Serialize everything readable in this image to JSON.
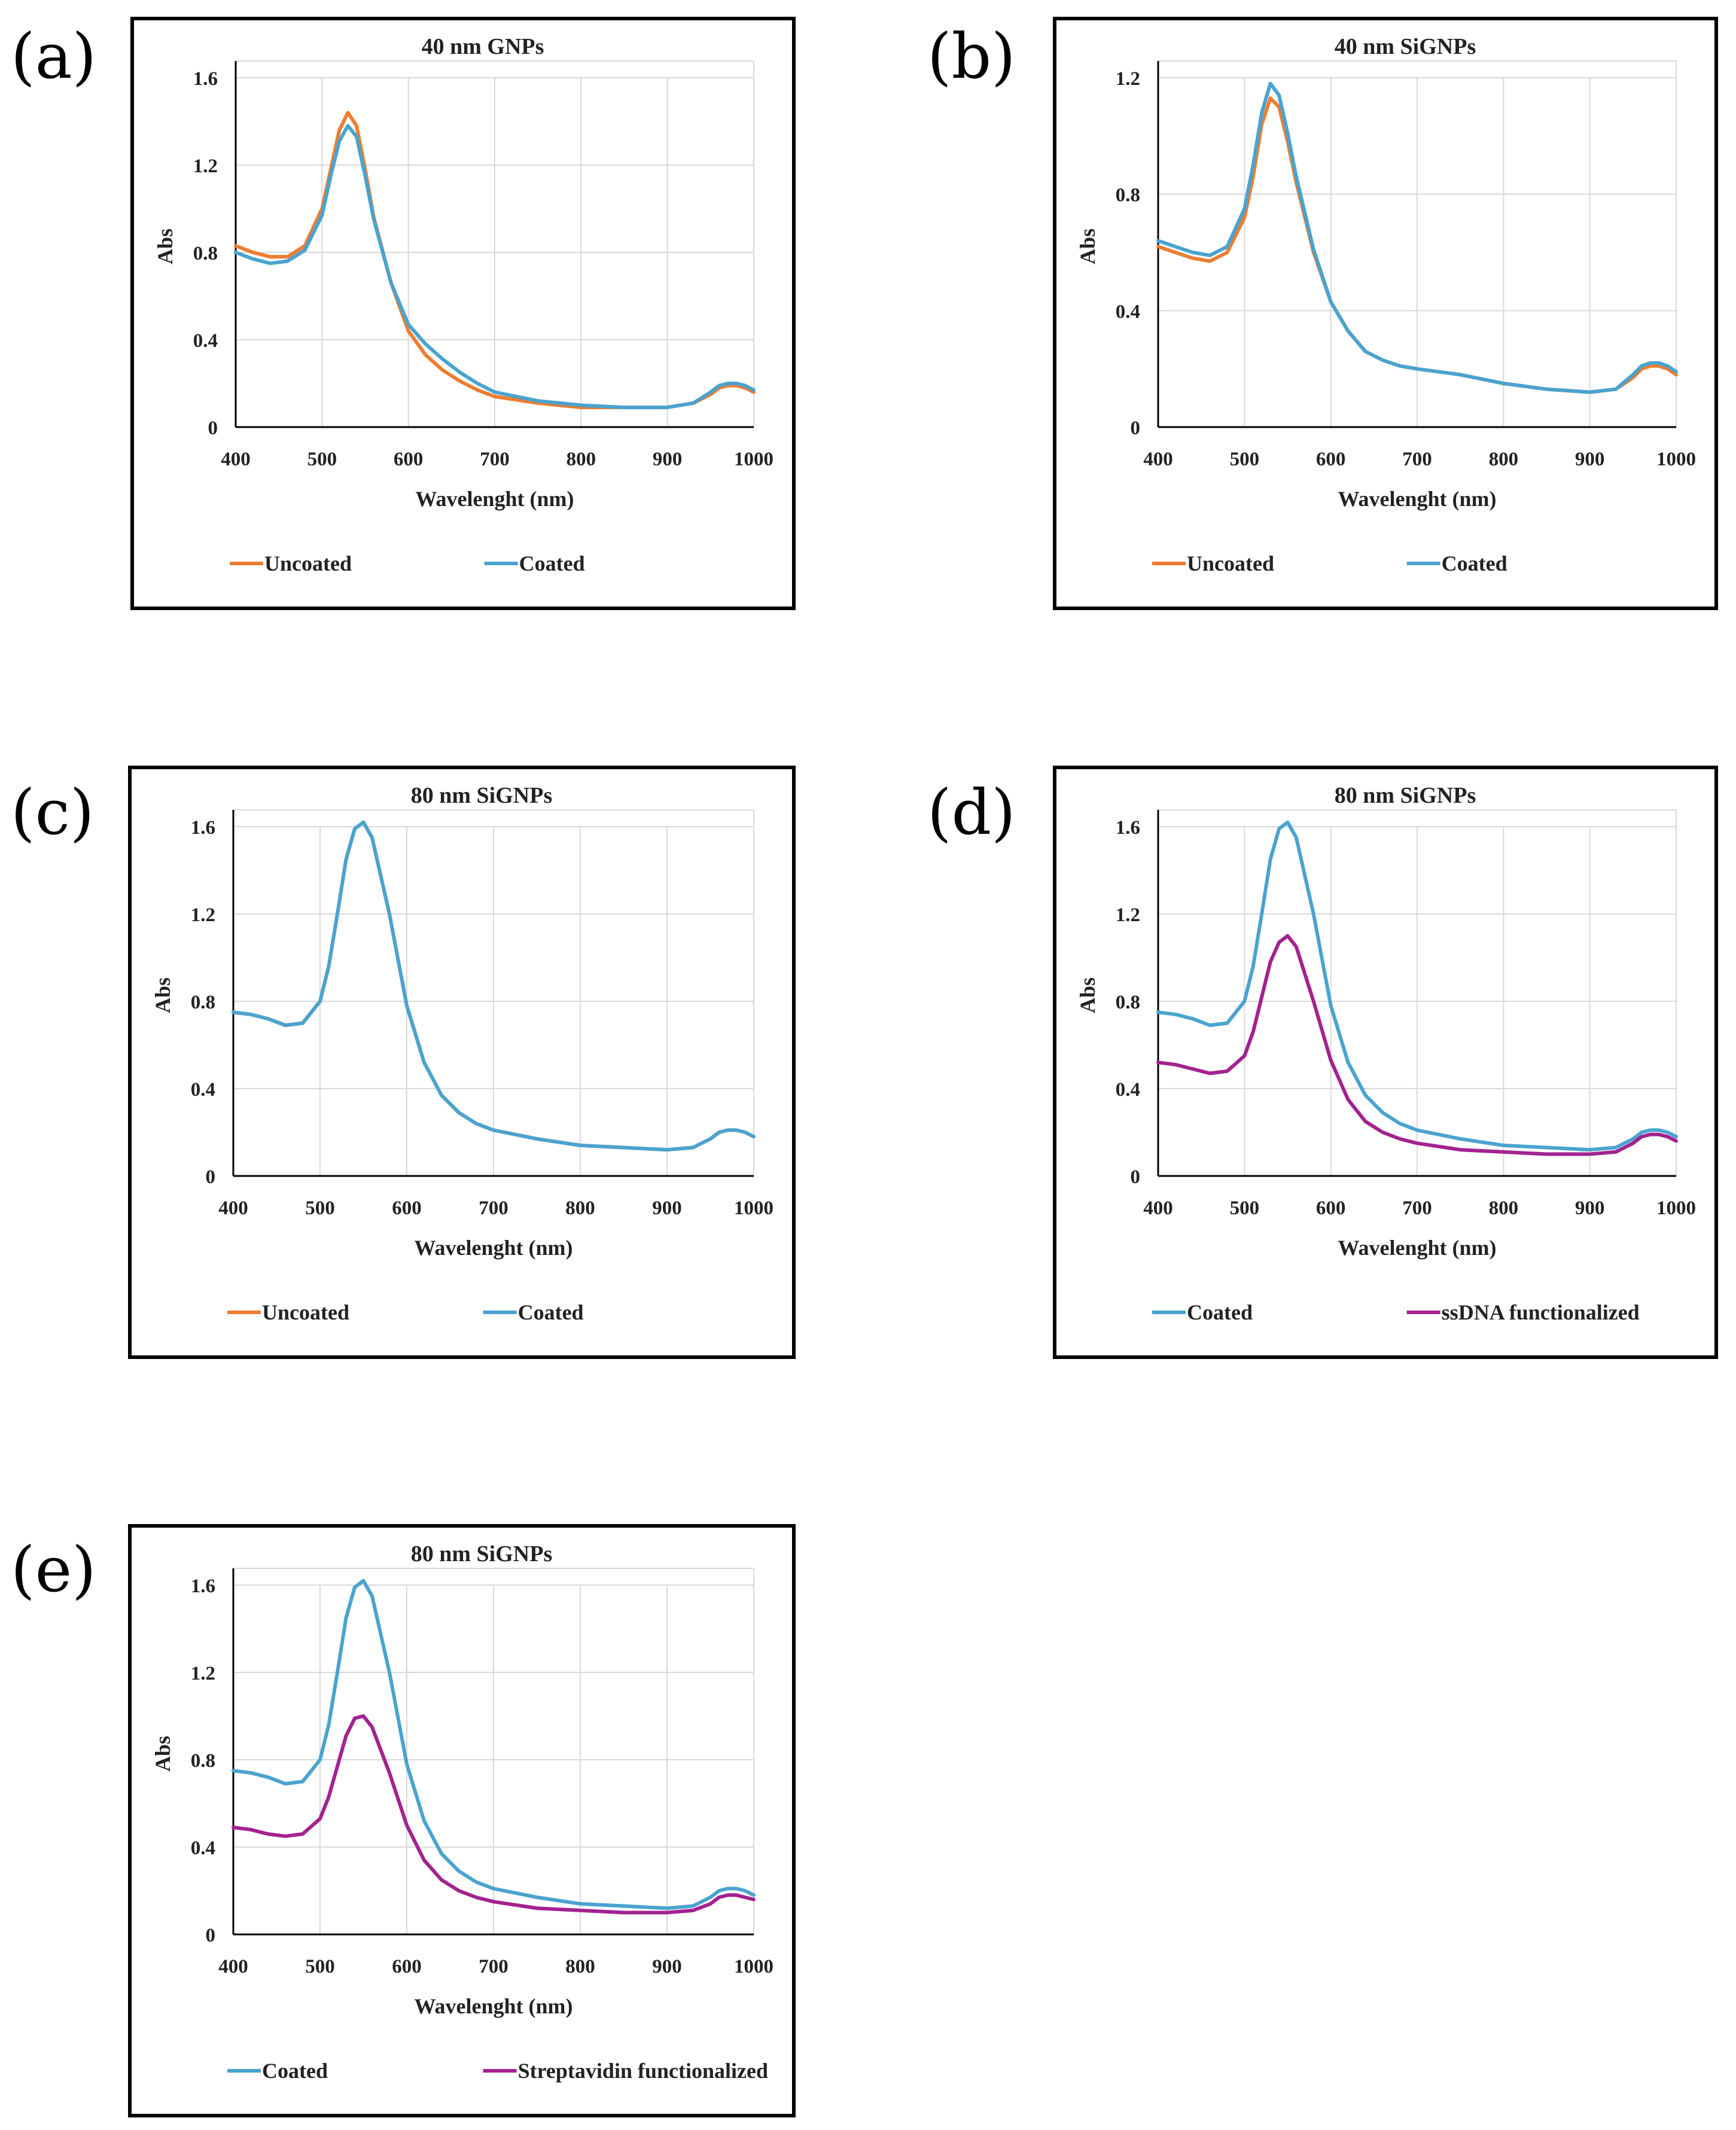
{
  "colors": {
    "uncoated": "#ED7D31",
    "coated": "#4AA3CF",
    "functionalized": "#A3228F",
    "grid": "#D9D9D9",
    "axis": "#000000"
  },
  "chart_data": [
    {
      "id": "a",
      "panel_label": "(a)",
      "type": "line",
      "title": "40 nm GNPs",
      "xlabel": "Wavelenght  (nm)",
      "ylabel": "Abs",
      "xlim": [
        400,
        1000
      ],
      "ylim": [
        0,
        1.6
      ],
      "xticks": [
        400,
        500,
        600,
        700,
        800,
        900,
        1000
      ],
      "yticks": [
        0,
        0.4,
        0.8,
        1.2,
        1.6
      ],
      "ytick_labels": [
        "0",
        "0.4",
        "0.8",
        "1.2",
        "1.6"
      ],
      "legend": "bottom",
      "series": [
        {
          "name": "Uncoated",
          "color_key": "uncoated",
          "x": [
            400,
            420,
            440,
            460,
            480,
            500,
            510,
            520,
            530,
            540,
            550,
            560,
            580,
            600,
            620,
            640,
            660,
            680,
            700,
            750,
            800,
            850,
            900,
            930,
            950,
            960,
            970,
            980,
            990,
            1000
          ],
          "y": [
            0.83,
            0.8,
            0.78,
            0.78,
            0.83,
            1.0,
            1.18,
            1.36,
            1.44,
            1.38,
            1.18,
            0.96,
            0.66,
            0.44,
            0.33,
            0.26,
            0.21,
            0.17,
            0.14,
            0.11,
            0.09,
            0.09,
            0.09,
            0.11,
            0.15,
            0.18,
            0.19,
            0.19,
            0.18,
            0.16
          ]
        },
        {
          "name": "Coated",
          "color_key": "coated",
          "x": [
            400,
            420,
            440,
            460,
            480,
            500,
            510,
            520,
            530,
            540,
            550,
            560,
            580,
            600,
            620,
            640,
            660,
            680,
            700,
            750,
            800,
            850,
            900,
            930,
            950,
            960,
            970,
            980,
            990,
            1000
          ],
          "y": [
            0.8,
            0.77,
            0.75,
            0.76,
            0.81,
            0.97,
            1.15,
            1.31,
            1.38,
            1.33,
            1.15,
            0.95,
            0.66,
            0.47,
            0.38,
            0.31,
            0.25,
            0.2,
            0.16,
            0.12,
            0.1,
            0.09,
            0.09,
            0.11,
            0.16,
            0.19,
            0.2,
            0.2,
            0.19,
            0.17
          ]
        }
      ]
    },
    {
      "id": "b",
      "panel_label": "(b)",
      "type": "line",
      "title": "40 nm SiGNPs",
      "xlabel": "Wavelenght  (nm)",
      "ylabel": "Abs",
      "xlim": [
        400,
        1000
      ],
      "ylim": [
        0,
        1.2
      ],
      "xticks": [
        400,
        500,
        600,
        700,
        800,
        900,
        1000
      ],
      "yticks": [
        0,
        0.4,
        0.8,
        1.2
      ],
      "ytick_labels": [
        "0",
        "0.4",
        "0.8",
        "1.2"
      ],
      "legend": "bottom",
      "series": [
        {
          "name": "Uncoated",
          "color_key": "uncoated",
          "x": [
            400,
            420,
            440,
            460,
            480,
            500,
            510,
            520,
            530,
            540,
            550,
            560,
            580,
            600,
            620,
            640,
            660,
            680,
            700,
            750,
            800,
            850,
            900,
            930,
            950,
            960,
            970,
            980,
            990,
            1000
          ],
          "y": [
            0.62,
            0.6,
            0.58,
            0.57,
            0.6,
            0.72,
            0.86,
            1.04,
            1.13,
            1.1,
            0.98,
            0.84,
            0.6,
            0.43,
            0.33,
            0.26,
            0.23,
            0.21,
            0.2,
            0.18,
            0.15,
            0.13,
            0.12,
            0.13,
            0.17,
            0.2,
            0.21,
            0.21,
            0.2,
            0.18
          ]
        },
        {
          "name": "Coated",
          "color_key": "coated",
          "x": [
            400,
            420,
            440,
            460,
            480,
            500,
            510,
            520,
            530,
            540,
            550,
            560,
            580,
            600,
            620,
            640,
            660,
            680,
            700,
            750,
            800,
            850,
            900,
            930,
            950,
            960,
            970,
            980,
            990,
            1000
          ],
          "y": [
            0.64,
            0.62,
            0.6,
            0.59,
            0.62,
            0.75,
            0.9,
            1.08,
            1.18,
            1.14,
            1.01,
            0.86,
            0.61,
            0.43,
            0.33,
            0.26,
            0.23,
            0.21,
            0.2,
            0.18,
            0.15,
            0.13,
            0.12,
            0.13,
            0.18,
            0.21,
            0.22,
            0.22,
            0.21,
            0.19
          ]
        }
      ]
    },
    {
      "id": "c",
      "panel_label": "(c)",
      "type": "line",
      "title": "80 nm SiGNPs",
      "xlabel": "Wavelenght  (nm)",
      "ylabel": "Abs",
      "xlim": [
        400,
        1000
      ],
      "ylim": [
        0,
        1.6
      ],
      "xticks": [
        400,
        500,
        600,
        700,
        800,
        900,
        1000
      ],
      "yticks": [
        0,
        0.4,
        0.8,
        1.2,
        1.6
      ],
      "ytick_labels": [
        "0",
        "0.4",
        "0.8",
        "1.2",
        "1.6"
      ],
      "legend": "bottom",
      "series": [
        {
          "name": "Uncoated",
          "color_key": "uncoated",
          "x": [
            400,
            420,
            440,
            460,
            480,
            500,
            510,
            520,
            530,
            540,
            550,
            560,
            580,
            600,
            620,
            640,
            660,
            680,
            700,
            750,
            800,
            850,
            900,
            930,
            950,
            960,
            970,
            980,
            990,
            1000
          ],
          "y": [
            0.75,
            0.74,
            0.72,
            0.69,
            0.7,
            0.8,
            0.96,
            1.2,
            1.45,
            1.59,
            1.62,
            1.55,
            1.2,
            0.78,
            0.52,
            0.37,
            0.29,
            0.24,
            0.21,
            0.17,
            0.14,
            0.13,
            0.12,
            0.13,
            0.17,
            0.2,
            0.21,
            0.21,
            0.2,
            0.18
          ]
        },
        {
          "name": "Coated",
          "color_key": "coated",
          "x": [
            400,
            420,
            440,
            460,
            480,
            500,
            510,
            520,
            530,
            540,
            550,
            560,
            580,
            600,
            620,
            640,
            660,
            680,
            700,
            750,
            800,
            850,
            900,
            930,
            950,
            960,
            970,
            980,
            990,
            1000
          ],
          "y": [
            0.75,
            0.74,
            0.72,
            0.69,
            0.7,
            0.8,
            0.96,
            1.2,
            1.45,
            1.59,
            1.62,
            1.55,
            1.2,
            0.78,
            0.52,
            0.37,
            0.29,
            0.24,
            0.21,
            0.17,
            0.14,
            0.13,
            0.12,
            0.13,
            0.17,
            0.2,
            0.21,
            0.21,
            0.2,
            0.18
          ]
        }
      ]
    },
    {
      "id": "d",
      "panel_label": "(d)",
      "type": "line",
      "title": "80 nm SiGNPs",
      "xlabel": "Wavelenght  (nm)",
      "ylabel": "Abs",
      "xlim": [
        400,
        1000
      ],
      "ylim": [
        0,
        1.6
      ],
      "xticks": [
        400,
        500,
        600,
        700,
        800,
        900,
        1000
      ],
      "yticks": [
        0,
        0.4,
        0.8,
        1.2,
        1.6
      ],
      "ytick_labels": [
        "0",
        "0.4",
        "0.8",
        "1.2",
        "1.6"
      ],
      "legend": "bottom",
      "series": [
        {
          "name": "Coated",
          "color_key": "coated",
          "x": [
            400,
            420,
            440,
            460,
            480,
            500,
            510,
            520,
            530,
            540,
            550,
            560,
            580,
            600,
            620,
            640,
            660,
            680,
            700,
            750,
            800,
            850,
            900,
            930,
            950,
            960,
            970,
            980,
            990,
            1000
          ],
          "y": [
            0.75,
            0.74,
            0.72,
            0.69,
            0.7,
            0.8,
            0.96,
            1.2,
            1.45,
            1.59,
            1.62,
            1.55,
            1.2,
            0.78,
            0.52,
            0.37,
            0.29,
            0.24,
            0.21,
            0.17,
            0.14,
            0.13,
            0.12,
            0.13,
            0.17,
            0.2,
            0.21,
            0.21,
            0.2,
            0.18
          ]
        },
        {
          "name": "ssDNA functionalized",
          "color_key": "functionalized",
          "x": [
            400,
            420,
            440,
            460,
            480,
            500,
            510,
            520,
            530,
            540,
            550,
            560,
            580,
            600,
            620,
            640,
            660,
            680,
            700,
            750,
            800,
            850,
            900,
            930,
            950,
            960,
            970,
            980,
            990,
            1000
          ],
          "y": [
            0.52,
            0.51,
            0.49,
            0.47,
            0.48,
            0.55,
            0.66,
            0.82,
            0.98,
            1.07,
            1.1,
            1.05,
            0.8,
            0.53,
            0.35,
            0.25,
            0.2,
            0.17,
            0.15,
            0.12,
            0.11,
            0.1,
            0.1,
            0.11,
            0.15,
            0.18,
            0.19,
            0.19,
            0.18,
            0.16
          ]
        }
      ]
    },
    {
      "id": "e",
      "panel_label": "(e)",
      "type": "line",
      "title": "80 nm SiGNPs",
      "xlabel": "Wavelenght  (nm)",
      "ylabel": "Abs",
      "xlim": [
        400,
        1000
      ],
      "ylim": [
        0,
        1.6
      ],
      "xticks": [
        400,
        500,
        600,
        700,
        800,
        900,
        1000
      ],
      "yticks": [
        0,
        0.4,
        0.8,
        1.2,
        1.6
      ],
      "ytick_labels": [
        "0",
        "0.4",
        "0.8",
        "1.2",
        "1.6"
      ],
      "legend": "bottom",
      "series": [
        {
          "name": "Coated",
          "color_key": "coated",
          "x": [
            400,
            420,
            440,
            460,
            480,
            500,
            510,
            520,
            530,
            540,
            550,
            560,
            580,
            600,
            620,
            640,
            660,
            680,
            700,
            750,
            800,
            850,
            900,
            930,
            950,
            960,
            970,
            980,
            990,
            1000
          ],
          "y": [
            0.75,
            0.74,
            0.72,
            0.69,
            0.7,
            0.8,
            0.96,
            1.2,
            1.45,
            1.59,
            1.62,
            1.55,
            1.2,
            0.78,
            0.52,
            0.37,
            0.29,
            0.24,
            0.21,
            0.17,
            0.14,
            0.13,
            0.12,
            0.13,
            0.17,
            0.2,
            0.21,
            0.21,
            0.2,
            0.18
          ]
        },
        {
          "name": "Streptavidin functionalized",
          "color_key": "functionalized",
          "x": [
            400,
            420,
            440,
            460,
            480,
            500,
            510,
            520,
            530,
            540,
            550,
            560,
            580,
            600,
            620,
            640,
            660,
            680,
            700,
            750,
            800,
            850,
            900,
            930,
            950,
            960,
            970,
            980,
            990,
            1000
          ],
          "y": [
            0.49,
            0.48,
            0.46,
            0.45,
            0.46,
            0.53,
            0.63,
            0.77,
            0.91,
            0.99,
            1.0,
            0.95,
            0.74,
            0.5,
            0.34,
            0.25,
            0.2,
            0.17,
            0.15,
            0.12,
            0.11,
            0.1,
            0.1,
            0.11,
            0.14,
            0.17,
            0.18,
            0.18,
            0.17,
            0.16
          ]
        }
      ]
    }
  ]
}
